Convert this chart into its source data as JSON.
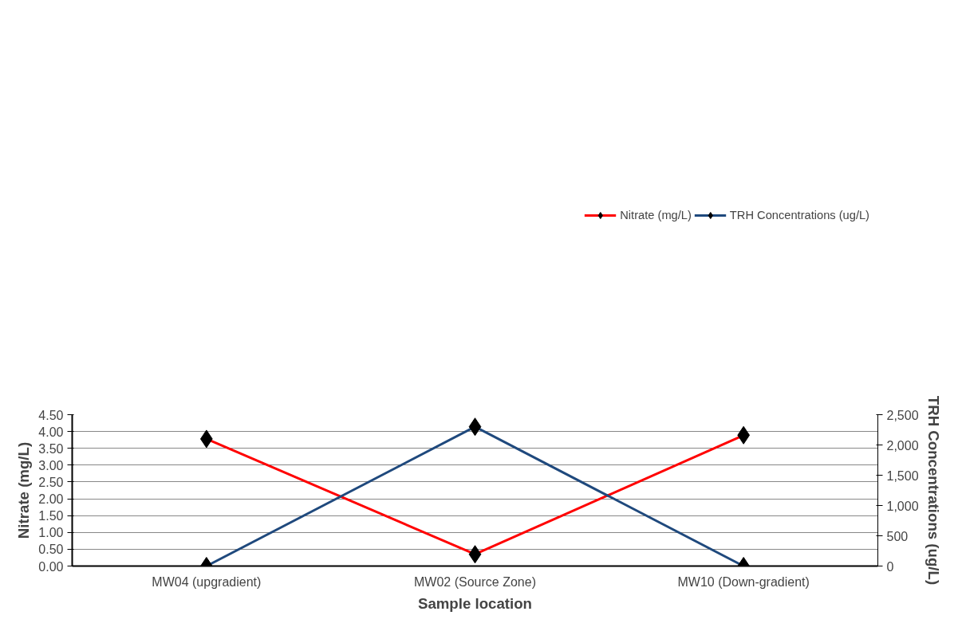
{
  "chart_data": {
    "type": "line",
    "xlabel": "Sample location",
    "ylabel": "Nitrate (mg/L)",
    "y2label": "TRH Concentrations (ug/L)",
    "categories": [
      "MW04 (upgradient)",
      "MW02 (Source Zone)",
      "MW10 (Down-gradient)"
    ],
    "series": [
      {
        "name": "Nitrate (mg/L)",
        "color": "#ff0000",
        "values": [
          3.78,
          0.35,
          3.89
        ]
      },
      {
        "name": "TRH Concentrations (ug/L)",
        "color": "#1f497d",
        "values": [
          0,
          2300,
          0
        ],
        "axis": "y2"
      }
    ],
    "ylim": [
      0,
      4.5
    ],
    "yticks": [
      {
        "value": 0,
        "label": "0.00"
      },
      {
        "value": 0.5,
        "label": "0.50"
      },
      {
        "value": 1,
        "label": "1.00"
      },
      {
        "value": 1.5,
        "label": "1.50"
      },
      {
        "value": 2,
        "label": "2.00"
      },
      {
        "value": 2.5,
        "label": "2.50"
      },
      {
        "value": 3,
        "label": "3.00"
      },
      {
        "value": 3.5,
        "label": "3.50"
      },
      {
        "value": 4,
        "label": "4.00"
      },
      {
        "value": 4.5,
        "label": "4.50"
      }
    ],
    "y2lim": [
      0,
      2500
    ],
    "y2ticks": [
      0,
      500,
      {
        "value": 1000,
        "label": "1,000"
      },
      {
        "value": 1500,
        "label": "1,500"
      },
      {
        "value": 2000,
        "label": "2,000"
      },
      {
        "value": 2500,
        "label": "2,500"
      }
    ],
    "grid": "y",
    "legend": "top",
    "marker": "diamond",
    "line_style": "solid"
  }
}
